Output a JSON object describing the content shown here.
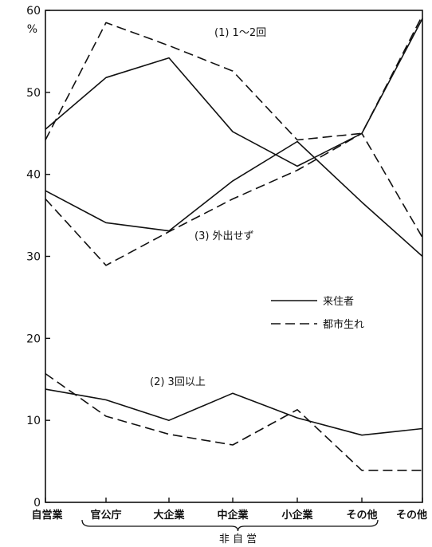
{
  "chart_data": {
    "type": "line",
    "y_unit": "%",
    "ylim": [
      0,
      60
    ],
    "yticks": [
      0,
      10,
      20,
      30,
      40,
      50,
      60
    ],
    "categories": [
      "自営業",
      "官公庁",
      "大企業",
      "中企業",
      "小企業",
      "その他",
      "その他"
    ],
    "group_label": "非 自 営",
    "group_range": [
      1,
      5
    ],
    "legend": [
      {
        "label": "来住者",
        "style": "solid"
      },
      {
        "label": "都市生れ",
        "style": "dashed"
      }
    ],
    "legend_position": "right-middle",
    "grid": false,
    "groups": [
      {
        "label": "(1) 1～2回",
        "series": [
          {
            "style": "solid",
            "values": [
              45.5,
              51.8,
              54.2,
              45.2,
              41.0,
              45.0,
              59.0
            ]
          },
          {
            "style": "dashed",
            "values": [
              44.2,
              58.5,
              55.7,
              52.6,
              44.2,
              45.0,
              59.4
            ]
          }
        ]
      },
      {
        "label": "(2) 3回以上",
        "series": [
          {
            "style": "solid",
            "values": [
              13.8,
              12.5,
              10.0,
              13.3,
              10.3,
              8.2,
              9.0
            ]
          },
          {
            "style": "dashed",
            "values": [
              15.7,
              10.5,
              8.3,
              7.0,
              11.3,
              3.9,
              3.9
            ]
          }
        ]
      },
      {
        "label": "(3) 外出せず",
        "series": [
          {
            "style": "solid",
            "values": [
              38.0,
              34.1,
              33.1,
              39.2,
              44.0,
              36.6,
              30.0
            ]
          },
          {
            "style": "dashed",
            "values": [
              37.0,
              28.9,
              33.0,
              37.0,
              40.5,
              45.0,
              32.3
            ]
          }
        ]
      }
    ]
  }
}
